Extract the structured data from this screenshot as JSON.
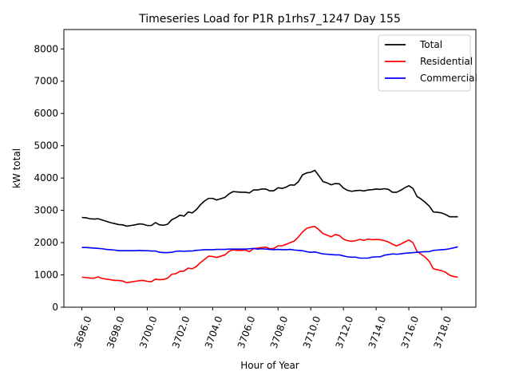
{
  "chart_data": {
    "type": "line",
    "title": "Timeseries Load for P1R p1rhs7_1247  Day 155",
    "xlabel": "Hour of Year",
    "ylabel": "kW total",
    "xlim": [
      3694.9,
      3720.1
    ],
    "ylim": [
      0,
      8600
    ],
    "x_ticks": [
      3696,
      3698,
      3700,
      3702,
      3704,
      3706,
      3708,
      3710,
      3712,
      3714,
      3716,
      3718
    ],
    "x_tick_labels": [
      "3696.0",
      "3698.0",
      "3700.0",
      "3702.0",
      "3704.0",
      "3706.0",
      "3708.0",
      "3710.0",
      "3712.0",
      "3714.0",
      "3716.0",
      "3718.0"
    ],
    "y_ticks": [
      0,
      1000,
      2000,
      3000,
      4000,
      5000,
      6000,
      7000,
      8000
    ],
    "y_tick_labels": [
      "0",
      "1000",
      "2000",
      "3000",
      "4000",
      "5000",
      "6000",
      "7000",
      "8000"
    ],
    "legend_position": "upper-right",
    "x_start": 3696,
    "x_step": 0.25,
    "series": [
      {
        "name": "Total",
        "color": "#000000",
        "values": [
          2780,
          2770,
          2740,
          2730,
          2740,
          2700,
          2660,
          2620,
          2590,
          2560,
          2550,
          2510,
          2530,
          2550,
          2580,
          2570,
          2530,
          2530,
          2620,
          2550,
          2540,
          2570,
          2710,
          2770,
          2850,
          2820,
          2950,
          2920,
          3020,
          3170,
          3290,
          3370,
          3370,
          3320,
          3360,
          3400,
          3510,
          3580,
          3570,
          3560,
          3560,
          3540,
          3630,
          3630,
          3660,
          3660,
          3600,
          3610,
          3700,
          3680,
          3720,
          3790,
          3780,
          3890,
          4100,
          4160,
          4180,
          4240,
          4070,
          3890,
          3850,
          3790,
          3830,
          3820,
          3690,
          3620,
          3590,
          3610,
          3620,
          3600,
          3630,
          3640,
          3660,
          3650,
          3670,
          3650,
          3560,
          3560,
          3620,
          3700,
          3760,
          3680,
          3430,
          3350,
          3250,
          3130,
          2950,
          2940,
          2920,
          2870,
          2800,
          2800,
          2800
        ]
      },
      {
        "name": "Residential",
        "color": "#ff0000",
        "values": [
          930,
          920,
          900,
          900,
          940,
          890,
          870,
          850,
          830,
          830,
          810,
          760,
          780,
          800,
          820,
          830,
          800,
          790,
          870,
          850,
          860,
          900,
          1020,
          1040,
          1110,
          1120,
          1210,
          1190,
          1260,
          1380,
          1480,
          1580,
          1570,
          1540,
          1580,
          1620,
          1730,
          1780,
          1760,
          1760,
          1770,
          1720,
          1810,
          1830,
          1850,
          1860,
          1810,
          1820,
          1900,
          1900,
          1950,
          2000,
          2050,
          2180,
          2330,
          2440,
          2480,
          2500,
          2400,
          2280,
          2230,
          2180,
          2250,
          2220,
          2110,
          2060,
          2040,
          2060,
          2100,
          2070,
          2110,
          2090,
          2100,
          2090,
          2060,
          2020,
          1950,
          1900,
          1950,
          2020,
          2080,
          2000,
          1730,
          1640,
          1550,
          1420,
          1190,
          1160,
          1130,
          1080,
          990,
          950,
          930
        ]
      },
      {
        "name": "Commercial",
        "color": "#0000ff",
        "values": [
          1850,
          1850,
          1840,
          1830,
          1820,
          1810,
          1790,
          1780,
          1770,
          1750,
          1750,
          1750,
          1750,
          1750,
          1760,
          1750,
          1750,
          1740,
          1740,
          1700,
          1690,
          1690,
          1700,
          1730,
          1740,
          1730,
          1740,
          1740,
          1760,
          1770,
          1780,
          1780,
          1780,
          1790,
          1790,
          1790,
          1800,
          1800,
          1800,
          1800,
          1800,
          1810,
          1820,
          1800,
          1810,
          1800,
          1790,
          1780,
          1790,
          1780,
          1780,
          1790,
          1770,
          1760,
          1750,
          1720,
          1700,
          1710,
          1680,
          1650,
          1640,
          1630,
          1620,
          1620,
          1590,
          1560,
          1550,
          1550,
          1520,
          1520,
          1520,
          1550,
          1560,
          1560,
          1610,
          1630,
          1650,
          1640,
          1650,
          1670,
          1680,
          1690,
          1700,
          1710,
          1720,
          1720,
          1760,
          1770,
          1780,
          1790,
          1810,
          1840,
          1870
        ]
      }
    ]
  }
}
